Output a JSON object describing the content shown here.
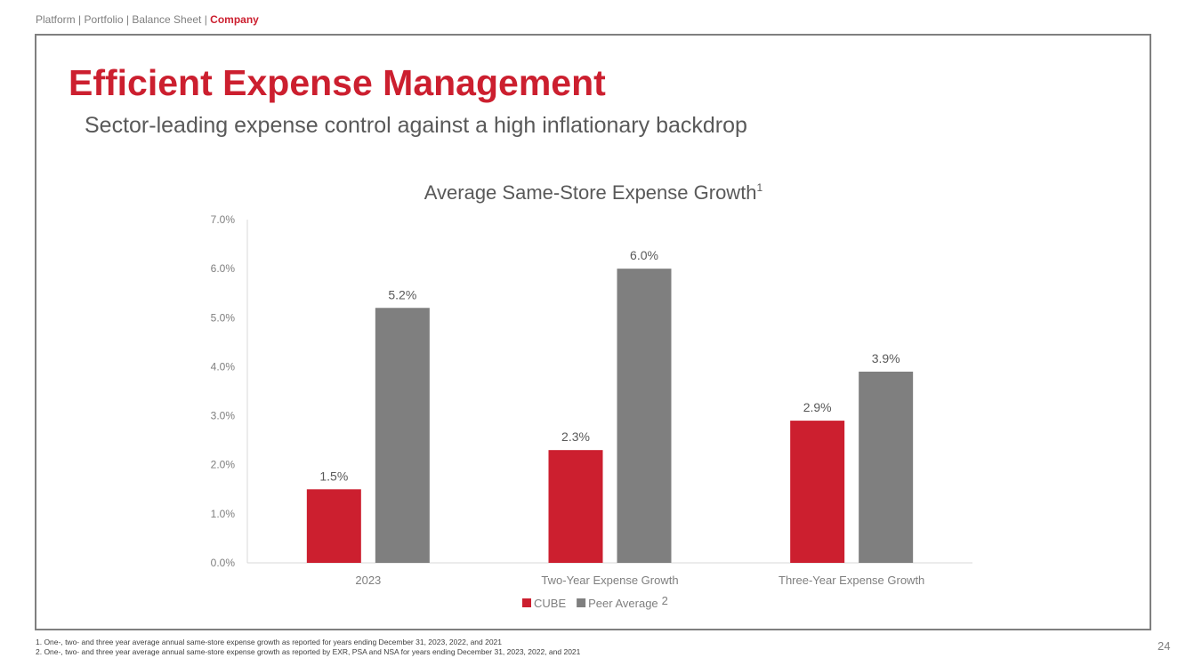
{
  "breadcrumb": {
    "items": [
      "Platform",
      "Portfolio",
      "Balance Sheet",
      "Company"
    ],
    "separator": " | ",
    "active_index": 3
  },
  "header": {
    "title": "Efficient Expense Management",
    "subtitle": "Sector-leading expense control against a high inflationary backdrop"
  },
  "chart_data": {
    "type": "bar",
    "title": "Average Same-Store Expense Growth",
    "title_superscript": "1",
    "categories": [
      "2023",
      "Two-Year Expense Growth",
      "Three-Year Expense Growth"
    ],
    "series": [
      {
        "name": "CUBE",
        "values": [
          1.5,
          2.3,
          2.9
        ],
        "labels": [
          "1.5%",
          "2.3%",
          "2.9%"
        ],
        "color": "#cc1f2f"
      },
      {
        "name": "Peer Average",
        "name_superscript": "2",
        "values": [
          5.2,
          6.0,
          3.9
        ],
        "labels": [
          "5.2%",
          "6.0%",
          "3.9%"
        ],
        "color": "#7f7f7f"
      }
    ],
    "ylim": [
      0,
      7
    ],
    "yticks": [
      0,
      1,
      2,
      3,
      4,
      5,
      6,
      7
    ],
    "ytick_labels": [
      "0.0%",
      "1.0%",
      "2.0%",
      "3.0%",
      "4.0%",
      "5.0%",
      "6.0%",
      "7.0%"
    ],
    "xlabel": "",
    "ylabel": "",
    "legend": "bottom",
    "grid": false
  },
  "footnotes": [
    "1.   One-, two- and three year average annual same-store expense growth as reported for years ending December 31, 2023, 2022, and 2021",
    "2.   One-, two- and three year average annual same-store expense growth as reported by EXR, PSA and NSA for years ending December 31, 2023, 2022, and 2021"
  ],
  "page_number": "24",
  "colors": {
    "brand_red": "#cc1f2f",
    "gray": "#7f7f7f",
    "text_gray": "#595959"
  }
}
